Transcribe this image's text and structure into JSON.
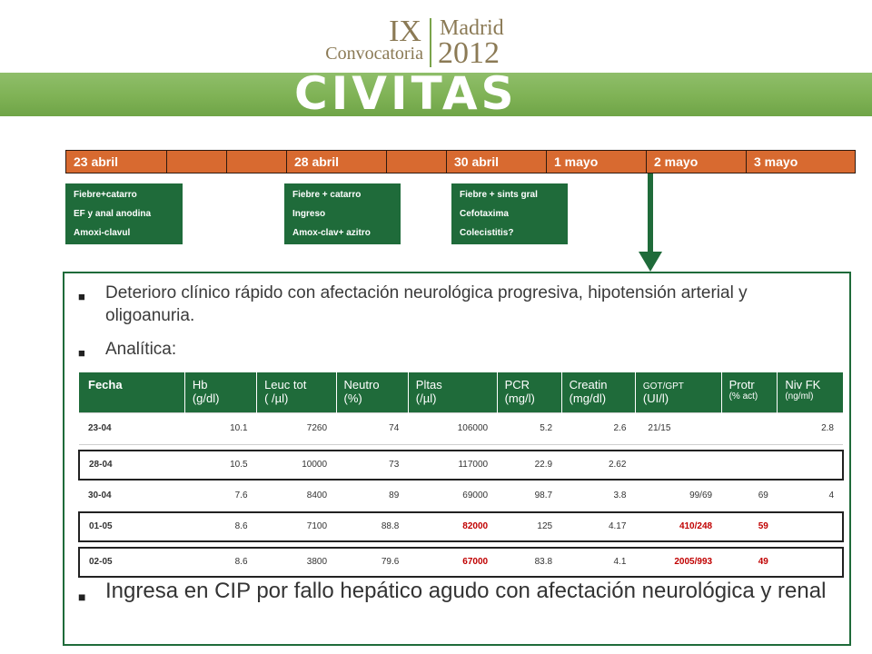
{
  "header": {
    "convocatoria_roman": "IX",
    "convocatoria_label": "Convocatoria",
    "city": "Madrid",
    "year": "2012",
    "banner_title": "CIVITAS"
  },
  "colors": {
    "timeline_orange": "#d86a30",
    "dark_green": "#1f6b3a",
    "banner_green": "#7fb255",
    "highlight_red": "#c00000"
  },
  "timeline": {
    "cells": [
      "23 abril",
      "",
      "",
      "28 abril",
      "",
      "30 abril",
      "1 mayo",
      "2 mayo",
      "3 mayo"
    ]
  },
  "notes": [
    {
      "lines": [
        "Fiebre+catarro",
        "EF y anal anodina",
        "Amoxi-clavul"
      ]
    },
    {
      "lines": [
        "Fiebre + catarro",
        "Ingreso",
        "Amox-clav+ azitro"
      ]
    },
    {
      "lines": [
        "Fiebre + sints gral",
        "Cefotaxima",
        "Colecistitis?"
      ]
    }
  ],
  "bullets": {
    "b1": "Deterioro clínico rápido con afectación neurológica progresiva, hipotensión arterial y oligoanuria.",
    "b2": "Analítica:",
    "b3": "Ingresa en CIP por fallo hepático agudo con afectación neurológica y renal"
  },
  "lab_table": {
    "headers": [
      {
        "line1": "Fecha",
        "line2": ""
      },
      {
        "line1": "Hb",
        "line2": "(g/dl)"
      },
      {
        "line1": "Leuc tot",
        "line2": "( /µl)"
      },
      {
        "line1": "Neutro",
        "line2": "(%)"
      },
      {
        "line1": "Pltas",
        "line2": "(/µl)"
      },
      {
        "line1": "PCR",
        "line2": "(mg/l)"
      },
      {
        "line1": "Creatin",
        "line2": "(mg/dl)"
      },
      {
        "line1": "GOT/GPT",
        "line2": "(UI/l)"
      },
      {
        "line1": "Protr",
        "line2": "(% act)"
      },
      {
        "line1": "Niv FK",
        "line2": "(ng/ml)"
      }
    ],
    "rows": [
      [
        "23-04",
        "10.1",
        "7260",
        "74",
        "106000",
        "5.2",
        "2.6",
        "21/15",
        "",
        "2.8"
      ],
      [
        "28-04",
        "10.5",
        "10000",
        "73",
        "117000",
        "22.9",
        "2.62",
        "",
        "",
        ""
      ],
      [
        "30-04",
        "7.6",
        "8400",
        "89",
        "69000",
        "98.7",
        "3.8",
        "99/69",
        "69",
        "4"
      ],
      [
        "01-05",
        "8.6",
        "7100",
        "88.8",
        "82000",
        "125",
        "4.17",
        "410/248",
        "59",
        ""
      ],
      [
        "02-05",
        "8.6",
        "3800",
        "79.6",
        "67000",
        "83.8",
        "4.1",
        "2005/993",
        "49",
        ""
      ]
    ]
  }
}
